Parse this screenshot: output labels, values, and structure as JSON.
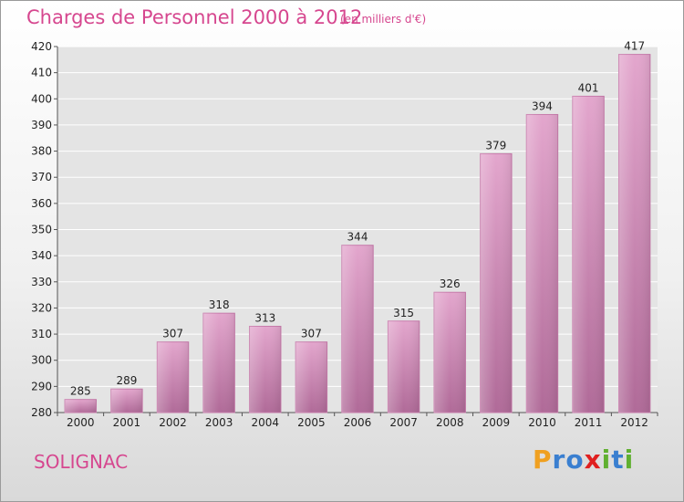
{
  "chart_data": {
    "type": "bar",
    "title": "Charges de Personnel 2000 à 2012",
    "subtitle": "(en milliers d'€)",
    "categories": [
      "2000",
      "2001",
      "2002",
      "2003",
      "2004",
      "2005",
      "2006",
      "2007",
      "2008",
      "2009",
      "2010",
      "2011",
      "2012"
    ],
    "values": [
      285,
      289,
      307,
      318,
      313,
      307,
      344,
      315,
      326,
      379,
      394,
      401,
      417
    ],
    "ylim": [
      280,
      420
    ],
    "yticks": [
      280,
      290,
      300,
      310,
      320,
      330,
      340,
      350,
      360,
      370,
      380,
      390,
      400,
      410,
      420
    ],
    "grid": true,
    "bar_color": "#d98fbf"
  },
  "footer": {
    "city": "SOLIGNAC",
    "logo_letters": [
      "P",
      "r",
      "o",
      "x",
      "i",
      "t",
      "i"
    ],
    "logo_colors": [
      "#f0a020",
      "#3a7fd0",
      "#3a7fd0",
      "#e02020",
      "#60b030",
      "#3a7fd0",
      "#60b030"
    ]
  }
}
